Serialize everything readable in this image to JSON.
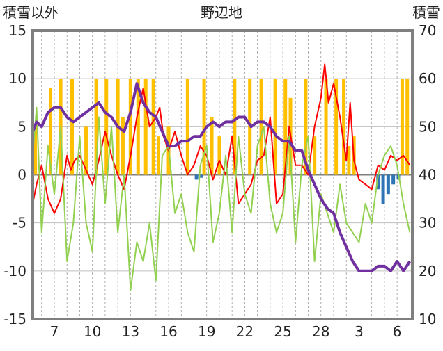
{
  "chart_data": {
    "type": "line",
    "title": "野辺地",
    "left_axis_label": "積雪以外",
    "right_axis_label": "積雪",
    "left_ylim": [
      -15,
      15
    ],
    "right_ylim": [
      10,
      70
    ],
    "left_ticks": [
      "15",
      "10",
      "5",
      "0",
      "-5",
      "-10",
      "-15"
    ],
    "right_ticks": [
      "70",
      "60",
      "50",
      "40",
      "30",
      "20",
      "10"
    ],
    "x_tick_labels": [
      "7",
      "10",
      "13",
      "16",
      "19",
      "22",
      "25",
      "28",
      "3",
      "6"
    ],
    "x_tick_days": [
      7,
      10,
      13,
      16,
      19,
      22,
      25,
      28,
      31,
      34
    ],
    "x_range_days": [
      5.3,
      35.2
    ],
    "grid": true,
    "colors": {
      "max_temp": "#ff0000",
      "min_temp": "#92d050",
      "snow_depth": "#7030a0",
      "snowfall": "#ffc000",
      "negative_bar": "#2e75b6",
      "frame": "#7f7f7f"
    },
    "series": [
      {
        "key": "max_temp",
        "axis": "left",
        "x": [
          5.3,
          5.6,
          6.0,
          6.5,
          7.0,
          7.5,
          8.0,
          8.3,
          8.6,
          9.0,
          9.5,
          10.0,
          10.5,
          11.0,
          11.5,
          12.0,
          12.5,
          13.0,
          13.5,
          14.0,
          14.5,
          15.0,
          15.3,
          15.6,
          16.0,
          16.5,
          17.0,
          17.5,
          18.0,
          18.5,
          19.0,
          19.5,
          20.0,
          20.5,
          21.0,
          21.5,
          22.0,
          22.5,
          23.0,
          23.5,
          24.0,
          24.5,
          25.0,
          25.5,
          26.0,
          26.5,
          27.0,
          27.5,
          28.0,
          28.3,
          28.6,
          29.0,
          29.5,
          30.0,
          30.3,
          30.6,
          31.0,
          31.5,
          32.0,
          32.5,
          33.0,
          33.5,
          34.0,
          34.5,
          35.0
        ],
        "y": [
          -3.0,
          -1.0,
          1.0,
          -2.5,
          -4.0,
          -2.5,
          2.0,
          0.5,
          1.5,
          2.0,
          0.5,
          -1.0,
          1.5,
          4.5,
          2.0,
          0.0,
          -1.5,
          2.0,
          6.0,
          9.0,
          5.0,
          6.0,
          7.0,
          4.0,
          2.5,
          4.5,
          2.0,
          0.0,
          1.0,
          3.0,
          2.0,
          -0.5,
          1.5,
          0.0,
          4.0,
          -3.0,
          -2.0,
          -1.0,
          1.5,
          2.0,
          6.0,
          -3.0,
          -2.0,
          5.0,
          1.0,
          1.0,
          0.0,
          5.0,
          8.0,
          11.5,
          7.5,
          9.5,
          6.0,
          1.5,
          7.5,
          1.5,
          -0.5,
          -1.0,
          -1.5,
          1.0,
          0.5,
          2.0,
          1.5,
          2.0,
          1.0
        ]
      },
      {
        "key": "min_temp",
        "axis": "left",
        "x": [
          5.3,
          5.6,
          6.0,
          6.5,
          7.0,
          7.5,
          8.0,
          8.5,
          9.0,
          9.5,
          10.0,
          10.5,
          11.0,
          11.5,
          12.0,
          12.5,
          13.0,
          13.5,
          14.0,
          14.5,
          15.0,
          15.5,
          16.0,
          16.5,
          17.0,
          17.5,
          18.0,
          18.5,
          19.0,
          19.5,
          20.0,
          20.5,
          21.0,
          21.5,
          22.0,
          22.5,
          23.0,
          23.5,
          24.0,
          24.5,
          25.0,
          25.5,
          26.0,
          26.5,
          27.0,
          27.5,
          28.0,
          28.5,
          29.0,
          29.5,
          30.0,
          30.5,
          31.0,
          31.5,
          32.0,
          32.5,
          33.0,
          33.5,
          34.0,
          34.5,
          35.0
        ],
        "y": [
          2.0,
          7.0,
          -6.0,
          3.0,
          -2.0,
          5.0,
          -9.0,
          -5.0,
          4.0,
          -5.0,
          -8.0,
          6.0,
          -3.0,
          5.0,
          -6.0,
          0.0,
          -12.0,
          -7.0,
          -9.0,
          -5.0,
          -11.0,
          2.0,
          3.0,
          -4.0,
          -2.0,
          -6.0,
          -8.0,
          1.0,
          3.0,
          -7.0,
          -4.0,
          2.0,
          -6.0,
          4.0,
          -2.0,
          -4.0,
          3.0,
          5.0,
          -3.0,
          -6.0,
          -4.0,
          4.0,
          -7.0,
          1.0,
          4.0,
          -9.0,
          -2.0,
          -4.0,
          -6.0,
          -1.0,
          -5.0,
          -6.0,
          -7.0,
          -3.0,
          -5.0,
          0.0,
          2.0,
          3.0,
          1.0,
          -3.0,
          -6.0
        ]
      },
      {
        "key": "snow_depth",
        "axis": "right",
        "x": [
          5.3,
          5.6,
          6.0,
          6.5,
          7.0,
          7.5,
          8.0,
          8.5,
          9.0,
          9.5,
          10.0,
          10.5,
          11.0,
          11.5,
          12.0,
          12.5,
          13.0,
          13.5,
          14.0,
          14.5,
          15.0,
          15.5,
          16.0,
          16.5,
          17.0,
          17.5,
          18.0,
          18.5,
          19.0,
          19.5,
          20.0,
          20.5,
          21.0,
          21.5,
          22.0,
          22.5,
          23.0,
          23.5,
          24.0,
          24.5,
          25.0,
          25.5,
          26.0,
          26.5,
          27.0,
          27.5,
          28.0,
          28.5,
          29.0,
          29.5,
          30.0,
          30.5,
          31.0,
          31.5,
          32.0,
          32.5,
          33.0,
          33.5,
          34.0,
          34.5,
          35.0
        ],
        "y": [
          49,
          51,
          50,
          53,
          54,
          54,
          52,
          51,
          52,
          53,
          54,
          55,
          53,
          52,
          50,
          49,
          53,
          59,
          55,
          53,
          52,
          49,
          46,
          46,
          47,
          47,
          48,
          48,
          50,
          51,
          50,
          51,
          51,
          52,
          52,
          50,
          51,
          51,
          50,
          48,
          47,
          47,
          45,
          45,
          41,
          38,
          35,
          33,
          32,
          28,
          25,
          22,
          20,
          20,
          20,
          21,
          21,
          20,
          22,
          20,
          22
        ]
      }
    ],
    "bar_series": [
      {
        "key": "snowfall",
        "axis": "left",
        "x": [
          5.5,
          6.7,
          7.5,
          8.4,
          9.5,
          10.3,
          11.1,
          12.0,
          12.4,
          13.0,
          13.6,
          14.2,
          14.8,
          15.2,
          16.0,
          17.5,
          18.8,
          19.4,
          20.0,
          21.2,
          22.4,
          23.3,
          24.4,
          25.2,
          25.6,
          26.8,
          27.5,
          28.4,
          29.2,
          29.8,
          30.2,
          30.6,
          34.4,
          34.8
        ],
        "y": [
          5,
          9,
          10,
          10,
          5,
          10,
          10,
          10,
          6,
          10,
          10,
          10,
          10,
          4,
          5,
          10,
          10,
          6,
          4,
          10,
          10,
          10,
          10,
          10,
          8,
          10,
          4,
          10,
          10,
          10,
          3,
          4,
          10,
          10
        ]
      },
      {
        "key": "negative_bar",
        "axis": "left",
        "x": [
          18.2,
          18.6,
          32.5,
          32.9,
          33.3,
          33.7,
          34.1
        ],
        "y": [
          -0.5,
          -0.3,
          -1.5,
          -3.0,
          -2.0,
          -1.0,
          -0.5
        ]
      }
    ]
  }
}
